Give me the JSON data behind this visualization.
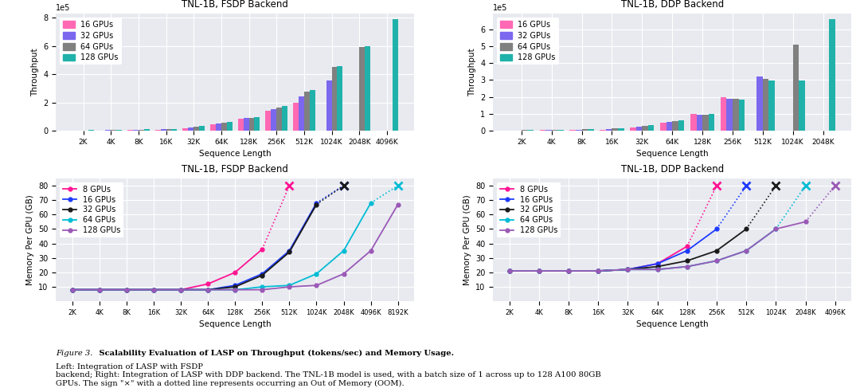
{
  "fsdp_bar_seq_labels": [
    "2K",
    "4K",
    "8K",
    "16K",
    "32K",
    "64K",
    "128K",
    "256K",
    "512K",
    "1024K",
    "2048K",
    "4096K"
  ],
  "fsdp_bar_16gpu": [
    1500,
    2500,
    4000,
    7000,
    17000,
    45000,
    82000,
    140000,
    195000,
    0,
    0,
    0
  ],
  "fsdp_bar_32gpu": [
    2000,
    3500,
    6000,
    9000,
    22000,
    52000,
    88000,
    150000,
    245000,
    355000,
    0,
    0
  ],
  "fsdp_bar_64gpu": [
    2500,
    4500,
    8000,
    12000,
    28000,
    58000,
    93000,
    163000,
    278000,
    450000,
    590000,
    0
  ],
  "fsdp_bar_128gpu": [
    3500,
    5500,
    10000,
    14000,
    33000,
    63000,
    98000,
    175000,
    288000,
    460000,
    600000,
    790000
  ],
  "ddp_bar_seq_labels": [
    "2K",
    "4K",
    "8K",
    "16K",
    "32K",
    "64K",
    "128K",
    "256K",
    "512K",
    "1024K",
    "2048K"
  ],
  "ddp_bar_16gpu": [
    1500,
    2500,
    4000,
    7000,
    17000,
    45000,
    100000,
    200000,
    0,
    0,
    0
  ],
  "ddp_bar_32gpu": [
    2000,
    3500,
    6000,
    9000,
    22000,
    52000,
    95000,
    190000,
    320000,
    0,
    0
  ],
  "ddp_bar_64gpu": [
    2500,
    4500,
    8000,
    12000,
    28000,
    58000,
    93000,
    190000,
    305000,
    510000,
    0
  ],
  "ddp_bar_128gpu": [
    3500,
    5500,
    10000,
    14000,
    33000,
    63000,
    98000,
    185000,
    295000,
    295000,
    660000
  ],
  "fsdp_mem_seq_labels": [
    "2K",
    "4K",
    "8K",
    "16K",
    "32K",
    "64K",
    "128K",
    "256K",
    "512K",
    "1024K",
    "2048K",
    "4096K",
    "8192K"
  ],
  "fsdp_mem_8gpu": [
    8,
    8,
    8,
    8,
    8,
    12,
    20,
    36,
    null,
    null,
    null,
    null,
    null
  ],
  "fsdp_mem_16gpu": [
    8,
    8,
    8,
    8,
    8,
    8,
    11,
    19,
    35,
    68,
    null,
    null,
    null
  ],
  "fsdp_mem_32gpu": [
    8,
    8,
    8,
    8,
    8,
    8,
    10,
    18,
    34,
    67,
    null,
    null,
    null
  ],
  "fsdp_mem_64gpu": [
    8,
    8,
    8,
    8,
    8,
    8,
    8,
    10,
    11,
    19,
    35,
    68,
    null
  ],
  "fsdp_mem_128gpu": [
    8,
    8,
    8,
    8,
    8,
    8,
    8,
    8,
    10,
    11,
    19,
    35,
    67
  ],
  "ddp_mem_seq_labels": [
    "2K",
    "4K",
    "8K",
    "16K",
    "32K",
    "64K",
    "128K",
    "256K",
    "512K",
    "1024K",
    "2048K",
    "4096K"
  ],
  "ddp_mem_8gpu": [
    21,
    21,
    21,
    21,
    22,
    26,
    38,
    null,
    null,
    null,
    null,
    null
  ],
  "ddp_mem_16gpu": [
    21,
    21,
    21,
    21,
    22,
    26,
    35,
    50,
    null,
    null,
    null,
    null
  ],
  "ddp_mem_32gpu": [
    21,
    21,
    21,
    21,
    22,
    24,
    28,
    35,
    50,
    null,
    null,
    null
  ],
  "ddp_mem_64gpu": [
    21,
    21,
    21,
    21,
    22,
    22,
    24,
    28,
    35,
    50,
    null,
    null
  ],
  "ddp_mem_128gpu": [
    21,
    21,
    21,
    21,
    22,
    22,
    24,
    28,
    35,
    50,
    55,
    null
  ],
  "bar_colors": {
    "16gpu": "#ff69b4",
    "32gpu": "#7b68ee",
    "64gpu": "#808080",
    "128gpu": "#20b2aa"
  },
  "line_colors": {
    "8gpu": "#ff1493",
    "16gpu": "#1e3aff",
    "32gpu": "#1a1a1a",
    "64gpu": "#00bcd4",
    "128gpu": "#9b59b6"
  },
  "bg_color": "#e8eaf0",
  "grid_color": "#ffffff",
  "caption_italic": "Figure 3.",
  "caption_bold": " Scalability Evaluation of LASP on Throughput (tokens/sec) and Memory Usage.",
  "caption_normal": " Left: Integration of LASP with FSDP\nbackend; Right: Integration of LASP with DDP backend. The TNL-1B model is used, with a batch size of 1 across up to 128 A100 80GB\nGPUs. The sign \"×\" with a dotted line represents occurring an Out of Memory (OOM)."
}
